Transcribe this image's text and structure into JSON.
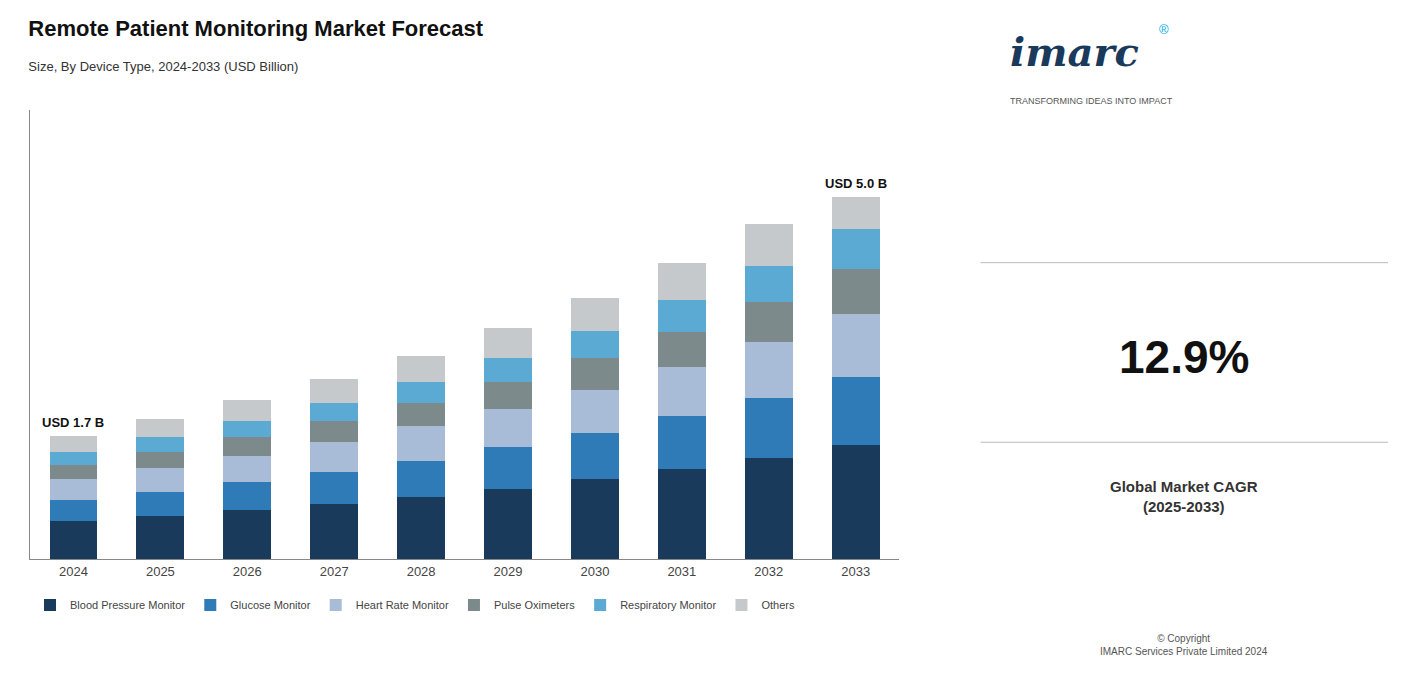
{
  "chart_data": {
    "type": "bar",
    "stacked": true,
    "title": "Remote Patient Monitoring Market Forecast",
    "subtitle": "Size, By Device Type, 2024-2033 (USD Billion)",
    "categories": [
      "2024",
      "2025",
      "2026",
      "2027",
      "2028",
      "2029",
      "2030",
      "2031",
      "2032",
      "2033"
    ],
    "series": [
      {
        "name": "Blood Pressure Monitor",
        "color": "#1a3a5c",
        "values": [
          0.52,
          0.59,
          0.67,
          0.76,
          0.86,
          0.97,
          1.1,
          1.24,
          1.4,
          1.58
        ]
      },
      {
        "name": "Glucose Monitor",
        "color": "#2e7bb8",
        "values": [
          0.3,
          0.34,
          0.39,
          0.44,
          0.5,
          0.57,
          0.64,
          0.73,
          0.83,
          0.94
        ]
      },
      {
        "name": "Heart Rate Monitor",
        "color": "#a8bcd8",
        "values": [
          0.28,
          0.32,
          0.36,
          0.41,
          0.47,
          0.53,
          0.6,
          0.68,
          0.77,
          0.87
        ]
      },
      {
        "name": "Pulse Oximeters",
        "color": "#7d8a8c",
        "values": [
          0.2,
          0.23,
          0.26,
          0.29,
          0.33,
          0.38,
          0.43,
          0.49,
          0.55,
          0.62
        ]
      },
      {
        "name": "Respiratory Monitor",
        "color": "#5baad4",
        "values": [
          0.18,
          0.2,
          0.23,
          0.26,
          0.29,
          0.33,
          0.38,
          0.43,
          0.49,
          0.55
        ]
      },
      {
        "name": "Others",
        "color": "#c5c9cc",
        "values": [
          0.22,
          0.25,
          0.28,
          0.32,
          0.36,
          0.41,
          0.46,
          0.52,
          0.59,
          0.44
        ]
      }
    ],
    "ylim": [
      0,
      6.2
    ],
    "yticks": [],
    "grid": false,
    "legend": "bottom",
    "tick_labels": "x",
    "annotations": [
      {
        "text": "USD 1.7 B",
        "category": "2024",
        "value": 1.7
      },
      {
        "text": "USD 5.0 B",
        "category": "2033",
        "value": 5.0
      },
      {
        "text": "imarc"
      },
      {
        "text": "®"
      },
      {
        "text": "TRANSFORMING IDEAS INTO IMPACT"
      },
      {
        "text": "12.9%"
      },
      {
        "text": "Global Market CAGR\n(2025-2033)"
      },
      {
        "text": "© Copyright\nIMARC Services Private Limited 2024"
      }
    ]
  }
}
